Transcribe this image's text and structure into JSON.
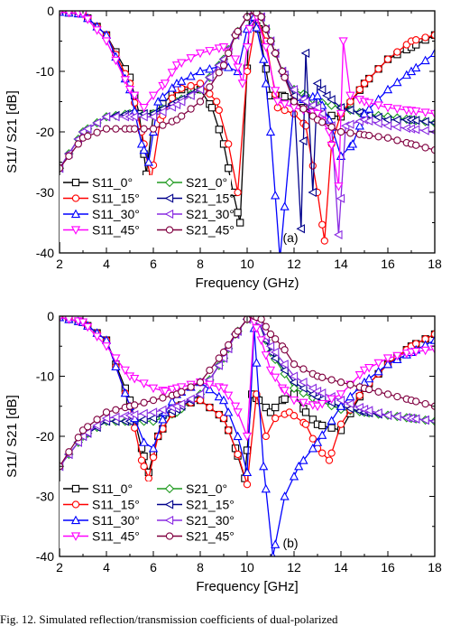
{
  "caption": "Fig. 12.     Simulated reflection/transmission coefficients of dual-polarized",
  "legend": {
    "line_color_s11_0": "#000000",
    "colors": {
      "S11_0°": "#000000",
      "S21_0°": "#1f9a1f",
      "S11_15°": "#ff0000",
      "S21_15°": "#00008b",
      "S11_30°": "#0000ff",
      "S21_30°": "#8a2be2",
      "S11_45°": "#ff00ff",
      "S21_45°": "#800040"
    },
    "markers": {
      "S11_0°": "square",
      "S21_0°": "diamond",
      "S11_15°": "circle",
      "S21_15°": "left-triangle",
      "S11_30°": "up-triangle",
      "S21_30°": "left-triangle",
      "S11_45°": "down-triangle",
      "S21_45°": "circle"
    }
  },
  "chart_data": [
    {
      "type": "line",
      "panel_label": "(a)",
      "xlabel": "Frequency (GHz)",
      "ylabel": "S11/ S21 [dB]",
      "xlim": [
        2,
        18
      ],
      "ylim": [
        -40,
        0
      ],
      "xticks": [
        2,
        4,
        6,
        8,
        10,
        12,
        14,
        16,
        18
      ],
      "yticks": [
        0,
        -10,
        -20,
        -30,
        -40
      ],
      "legend_position": "bottom-left",
      "series": [
        {
          "name": "S11_0°",
          "x": [
            2,
            3,
            4,
            5,
            5.4,
            5.7,
            6,
            7,
            8,
            8.5,
            9,
            9.4,
            9.7,
            10.1,
            10.5,
            11,
            11.5,
            12,
            12.4,
            13,
            14,
            15,
            16,
            17,
            18
          ],
          "y": [
            -0.2,
            -0.5,
            -4,
            -11,
            -17,
            -27,
            -17,
            -13,
            -13,
            -16,
            -22,
            -30,
            -35,
            -1,
            -3,
            -14,
            -14,
            -15,
            -16,
            -17,
            -17.5,
            -12,
            -8,
            -6,
            -4
          ]
        },
        {
          "name": "S21_0°",
          "x": [
            2,
            3,
            4,
            5,
            6,
            7,
            8,
            9,
            9.5,
            10,
            10.3,
            10.6,
            11,
            11.5,
            12,
            12.5,
            13,
            14,
            15,
            16,
            17,
            18
          ],
          "y": [
            -26,
            -20,
            -17.5,
            -17,
            -17,
            -15,
            -13,
            -8,
            -4,
            -1,
            0,
            -1,
            -5,
            -10,
            -13,
            -14,
            -15,
            -16,
            -17,
            -17.5,
            -18,
            -18.5
          ]
        },
        {
          "name": "S11_15°",
          "x": [
            2,
            3,
            4,
            5,
            5.5,
            5.9,
            6.3,
            7,
            8,
            8.7,
            9.2,
            9.6,
            10,
            10.4,
            10.8,
            11.3,
            12,
            12.5,
            13,
            13.3,
            13.6,
            14,
            15,
            16,
            17,
            18
          ],
          "y": [
            -0.2,
            -0.5,
            -4,
            -12,
            -20,
            -28,
            -18,
            -13,
            -12,
            -15,
            -22,
            -30,
            -10,
            -1,
            -5,
            -16,
            -17,
            -19,
            -30,
            -38,
            -22,
            -17,
            -12,
            -8,
            -5,
            -4
          ]
        },
        {
          "name": "S21_15°",
          "x": [
            2,
            3,
            4,
            5,
            6,
            7,
            8,
            9,
            9.5,
            10,
            10.3,
            10.6,
            11,
            11.5,
            12,
            12.3,
            12.5,
            12.8,
            13,
            13.4,
            14,
            15,
            16,
            17,
            18
          ],
          "y": [
            -26,
            -20,
            -17.5,
            -17,
            -17,
            -15,
            -13,
            -8,
            -4,
            -1,
            0,
            -1,
            -5,
            -10,
            -14,
            -36,
            -7,
            -30,
            -12,
            -14,
            -16,
            -17,
            -18,
            -18,
            -18.5
          ]
        },
        {
          "name": "S11_30°",
          "x": [
            2,
            3,
            4,
            5,
            5.5,
            5.8,
            6.2,
            7,
            8,
            9,
            9.6,
            10,
            10.3,
            10.7,
            11,
            11.4,
            12,
            13,
            13.5,
            14,
            14.5,
            15,
            16,
            17,
            18
          ],
          "y": [
            -0.2,
            -0.5,
            -4,
            -13,
            -22,
            -25,
            -15,
            -12,
            -10,
            -9,
            -10,
            -3,
            -1,
            -8,
            -20,
            -41,
            -15,
            -14,
            -18,
            -24,
            -22,
            -17,
            -13,
            -10,
            -7
          ]
        },
        {
          "name": "S21_30°",
          "x": [
            2,
            3,
            4,
            5,
            6,
            7,
            8,
            9,
            9.5,
            10,
            10.3,
            10.6,
            11,
            11.5,
            12,
            12.5,
            13,
            13.6,
            13.9,
            14.2,
            15,
            16,
            17,
            18
          ],
          "y": [
            -26,
            -20,
            -17.5,
            -17.5,
            -17.5,
            -15.5,
            -13,
            -8,
            -4,
            -1,
            0,
            -1,
            -5,
            -10,
            -13,
            -15,
            -16,
            -19,
            -37,
            -19,
            -18,
            -19,
            -19.5,
            -20
          ]
        },
        {
          "name": "S11_45°",
          "x": [
            2,
            3,
            4,
            5,
            5.6,
            6,
            6.5,
            7,
            8,
            9,
            9.5,
            9.8,
            10.1,
            10.4,
            10.8,
            11.3,
            12,
            13,
            13.5,
            13.9,
            14.1,
            14.4,
            15,
            16,
            17,
            18
          ],
          "y": [
            -0.2,
            -0.5,
            -5,
            -13,
            -16,
            -14,
            -12,
            -9,
            -7,
            -6,
            -8,
            -12,
            -3,
            -1,
            -6,
            -15,
            -16,
            -17,
            -20,
            -29,
            -5,
            -14,
            -15,
            -16,
            -16.5,
            -17
          ]
        },
        {
          "name": "S21_45°",
          "x": [
            2,
            3,
            4,
            5,
            6,
            7,
            8,
            9,
            9.5,
            10,
            10.3,
            10.6,
            11,
            11.5,
            12,
            13,
            14,
            15,
            16,
            17,
            18
          ],
          "y": [
            -26,
            -21,
            -19.5,
            -19.5,
            -19.5,
            -18,
            -15,
            -9,
            -4,
            -1,
            0,
            -1,
            -5,
            -10,
            -15,
            -18,
            -20,
            -20.5,
            -21,
            -22,
            -23
          ]
        }
      ]
    },
    {
      "type": "line",
      "panel_label": "(b)",
      "xlabel": "Frequency [GHz]",
      "ylabel": "S11/ S21 [dB]",
      "xlim": [
        2,
        18
      ],
      "ylim": [
        -40,
        0
      ],
      "xticks": [
        2,
        4,
        6,
        8,
        10,
        12,
        14,
        16,
        18
      ],
      "yticks": [
        0,
        -10,
        -20,
        -30,
        -40
      ],
      "legend_position": "bottom-left",
      "series": [
        {
          "name": "S11_0°",
          "x": [
            2,
            3,
            4,
            5,
            5.5,
            5.8,
            6.2,
            7,
            8,
            9,
            9.5,
            9.9,
            10.2,
            10.5,
            11,
            11.5,
            12,
            12.5,
            13,
            14,
            15,
            16,
            17,
            18
          ],
          "y": [
            -0.2,
            -1,
            -4,
            -14,
            -22,
            -26,
            -20,
            -15,
            -14,
            -17,
            -22,
            -27,
            -13,
            -14,
            -16,
            -14,
            -13,
            -16,
            -18,
            -19,
            -12,
            -8,
            -5,
            -3
          ]
        },
        {
          "name": "S21_0°",
          "x": [
            2,
            3,
            4,
            5,
            6,
            7,
            8,
            9,
            9.5,
            10,
            10.2,
            10.5,
            11,
            12,
            13,
            14,
            15,
            16,
            17,
            18
          ],
          "y": [
            -25,
            -20,
            -17.5,
            -17.5,
            -17.5,
            -16,
            -13,
            -7,
            -3,
            -0.5,
            0,
            -1,
            -6,
            -12,
            -14,
            -15.5,
            -16,
            -16.5,
            -17,
            -17.5
          ]
        },
        {
          "name": "S11_15°",
          "x": [
            2,
            3,
            4,
            5,
            5.5,
            5.8,
            6.2,
            7,
            8,
            9,
            9.6,
            10,
            10.4,
            10.8,
            11.2,
            11.8,
            12.5,
            13,
            13.5,
            14,
            15,
            16,
            17,
            18
          ],
          "y": [
            -0.2,
            -1,
            -4,
            -15,
            -24,
            -27,
            -20,
            -15,
            -14,
            -17,
            -23,
            -28,
            -13,
            -20,
            -17,
            -16,
            -18,
            -22,
            -24,
            -18,
            -12,
            -8,
            -5,
            -3
          ]
        },
        {
          "name": "S21_15°",
          "x": [
            2,
            3,
            4,
            5,
            6,
            7,
            8,
            9,
            9.5,
            10,
            10.2,
            10.5,
            11,
            12,
            13,
            14,
            15,
            16,
            17,
            18
          ],
          "y": [
            -25,
            -20,
            -17.5,
            -17.5,
            -17,
            -15.5,
            -13,
            -7,
            -3,
            -0.5,
            0,
            -1,
            -6,
            -11,
            -13.5,
            -15,
            -16,
            -16.5,
            -17,
            -17.5
          ]
        },
        {
          "name": "S11_30°",
          "x": [
            2,
            3,
            4,
            5,
            5.6,
            6,
            6.5,
            7,
            8,
            9,
            9.6,
            10,
            10.3,
            10.7,
            11.1,
            11.6,
            12.2,
            13,
            14,
            15,
            16,
            17,
            18
          ],
          "y": [
            -0.2,
            -1,
            -4,
            -15,
            -21,
            -22,
            -16,
            -13,
            -11,
            -14,
            -20,
            -26,
            -2,
            -25,
            -40,
            -30,
            -25,
            -21,
            -15,
            -11,
            -8,
            -6,
            -4
          ]
        },
        {
          "name": "S21_30°",
          "x": [
            2,
            3,
            4,
            5,
            6,
            7,
            8,
            9,
            9.5,
            10,
            10.2,
            10.5,
            11,
            12,
            13,
            14,
            15,
            16,
            17,
            18
          ],
          "y": [
            -25,
            -20,
            -17,
            -16.5,
            -16,
            -15,
            -13,
            -7,
            -3,
            -0.5,
            0,
            -1,
            -5,
            -10,
            -12.5,
            -14,
            -15.5,
            -16.5,
            -17,
            -17.5
          ]
        },
        {
          "name": "S11_45°",
          "x": [
            2,
            3,
            4,
            5,
            6,
            6.5,
            7,
            8,
            9,
            9.5,
            10,
            10.3,
            10.6,
            11,
            11.5,
            12,
            13,
            14,
            15,
            16,
            17,
            18
          ],
          "y": [
            -0.2,
            -1,
            -5,
            -10,
            -12,
            -12.5,
            -12,
            -11,
            -12,
            -15,
            -20,
            -1,
            -4,
            -9,
            -12,
            -14,
            -15,
            -13,
            -9,
            -7,
            -6,
            -5.5
          ]
        },
        {
          "name": "S21_45°",
          "x": [
            2,
            3,
            4,
            5,
            6,
            7,
            8,
            9,
            9.5,
            10,
            10.3,
            10.6,
            11,
            11.5,
            12,
            13,
            14,
            15,
            16,
            17,
            18
          ],
          "y": [
            -25,
            -19,
            -16,
            -15,
            -14,
            -13,
            -11,
            -6,
            -3,
            -0.5,
            0,
            -0.5,
            -3,
            -5,
            -8,
            -10,
            -11,
            -12,
            -13,
            -14,
            -15
          ]
        }
      ]
    }
  ]
}
